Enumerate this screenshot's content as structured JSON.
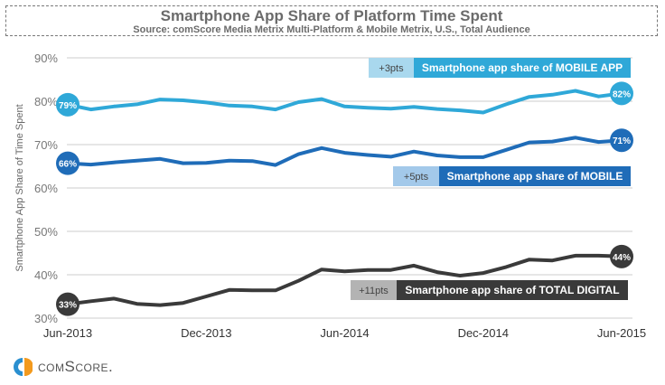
{
  "chart_data": {
    "type": "line",
    "title": "Smartphone App Share of Platform Time Spent",
    "subtitle": "Source: comScore Media Metrix Multi-Platform & Mobile Metrix, U.S., Total Audience",
    "xlabel": "",
    "ylabel": "Smartphone App Share of Time Spent",
    "ylim": [
      30,
      90
    ],
    "yticks": [
      "30%",
      "40%",
      "50%",
      "60%",
      "70%",
      "80%",
      "90%"
    ],
    "ytick_values": [
      30,
      40,
      50,
      60,
      70,
      80,
      90
    ],
    "xticks": [
      "Jun-2013",
      "Dec-2013",
      "Jun-2014",
      "Dec-2014",
      "Jun-2015"
    ],
    "xtick_indices": [
      0,
      6,
      12,
      18,
      24
    ],
    "x": [
      "Jun-2013",
      "Jul-2013",
      "Aug-2013",
      "Sep-2013",
      "Oct-2013",
      "Nov-2013",
      "Dec-2013",
      "Jan-2014",
      "Feb-2014",
      "Mar-2014",
      "Apr-2014",
      "May-2014",
      "Jun-2014",
      "Jul-2014",
      "Aug-2014",
      "Sep-2014",
      "Oct-2014",
      "Nov-2014",
      "Dec-2014",
      "Jan-2015",
      "Feb-2015",
      "Mar-2015",
      "Apr-2015",
      "May-2015",
      "Jun-2015"
    ],
    "grid": true,
    "series": [
      {
        "name": "Smartphone app share of MOBILE APP",
        "color": "#2fa8d8",
        "badge_color": "#a9d8ee",
        "change": "+3pts",
        "start_label": "79%",
        "end_label": "82%",
        "values": [
          79.2,
          78.1,
          78.8,
          79.3,
          80.4,
          80.2,
          79.7,
          79.0,
          78.8,
          78.1,
          79.8,
          80.5,
          78.8,
          78.5,
          78.3,
          78.7,
          78.2,
          77.9,
          77.4,
          79.3,
          81.0,
          81.5,
          82.4,
          81.1,
          81.8
        ]
      },
      {
        "name": "Smartphone app share of MOBILE",
        "color": "#1f6cb8",
        "badge_color": "#a3c9ea",
        "change": "+5pts",
        "start_label": "66%",
        "end_label": "71%",
        "values": [
          65.7,
          65.4,
          65.9,
          66.3,
          66.7,
          65.7,
          65.8,
          66.3,
          66.2,
          65.3,
          67.8,
          69.2,
          68.1,
          67.6,
          67.2,
          68.4,
          67.5,
          67.1,
          67.1,
          68.8,
          70.5,
          70.7,
          71.6,
          70.6,
          71.0
        ]
      },
      {
        "name": "Smartphone app share of TOTAL DIGITAL",
        "color": "#3a3a3a",
        "badge_color": "#b3b3b3",
        "change": "+11pts",
        "start_label": "33%",
        "end_label": "44%",
        "values": [
          33.2,
          33.9,
          34.5,
          33.3,
          33.0,
          33.5,
          35.0,
          36.5,
          36.4,
          36.4,
          38.6,
          41.2,
          40.8,
          41.1,
          41.1,
          42.1,
          40.6,
          39.8,
          40.4,
          41.8,
          43.5,
          43.3,
          44.4,
          44.4,
          44.2
        ]
      }
    ],
    "legend": "inline-labels"
  },
  "logo": {
    "name": "comScore",
    "text": "comScore."
  }
}
